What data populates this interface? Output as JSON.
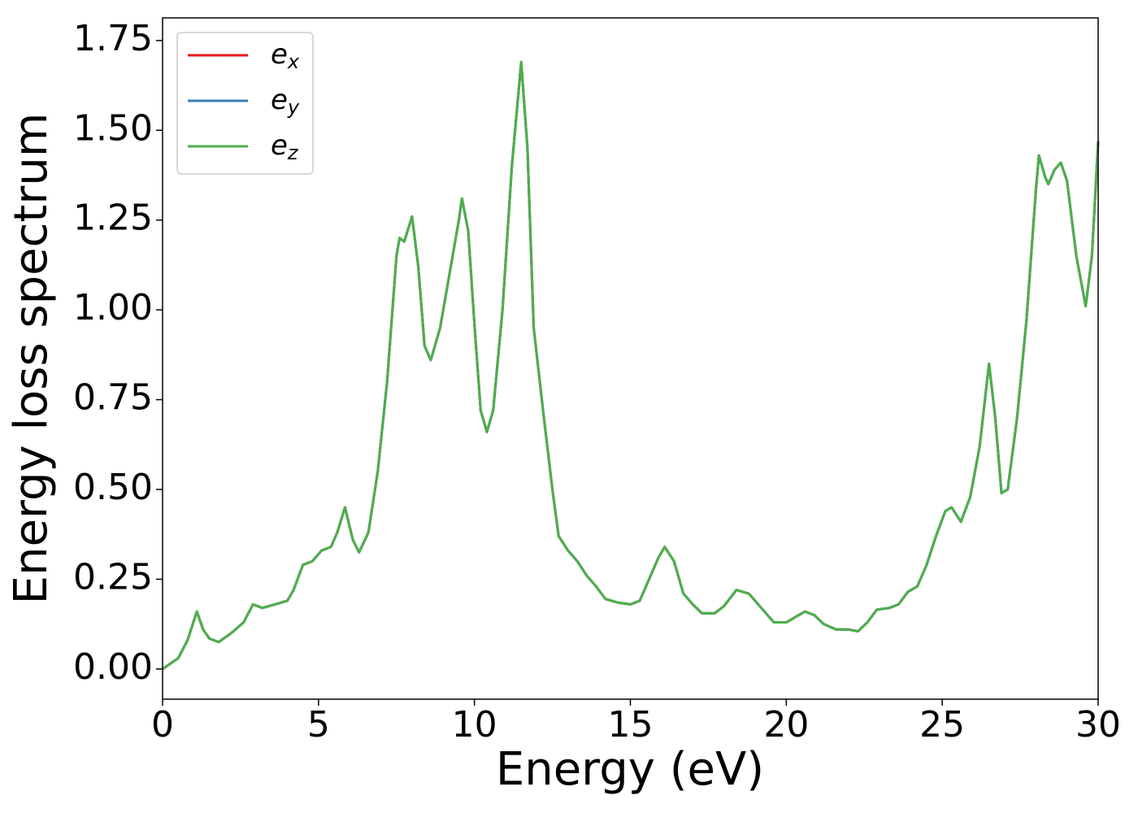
{
  "chart_data": {
    "type": "line",
    "xlabel": "Energy (eV)",
    "ylabel": "Energy loss spectrum",
    "x": [
      0,
      0.5,
      0.8,
      1.1,
      1.3,
      1.5,
      1.8,
      2.2,
      2.6,
      2.9,
      3.2,
      3.6,
      4.0,
      4.2,
      4.5,
      4.8,
      5.1,
      5.4,
      5.6,
      5.85,
      6.1,
      6.3,
      6.6,
      6.9,
      7.2,
      7.5,
      7.6,
      7.75,
      8.0,
      8.2,
      8.4,
      8.6,
      8.9,
      9.2,
      9.5,
      9.6,
      9.8,
      10.0,
      10.2,
      10.4,
      10.6,
      10.9,
      11.2,
      11.5,
      11.7,
      11.9,
      12.2,
      12.5,
      12.7,
      13.0,
      13.3,
      13.6,
      13.9,
      14.2,
      14.6,
      15.0,
      15.3,
      15.6,
      15.9,
      16.1,
      16.4,
      16.7,
      17.0,
      17.3,
      17.7,
      18.0,
      18.4,
      18.8,
      19.2,
      19.6,
      20.0,
      20.3,
      20.6,
      20.9,
      21.2,
      21.6,
      22.0,
      22.3,
      22.6,
      22.9,
      23.3,
      23.6,
      23.9,
      24.2,
      24.5,
      24.8,
      25.1,
      25.3,
      25.6,
      25.9,
      26.2,
      26.5,
      26.7,
      26.9,
      27.1,
      27.4,
      27.7,
      28.0,
      28.1,
      28.3,
      28.4,
      28.6,
      28.8,
      29.0,
      29.3,
      29.6,
      29.8,
      30.0
    ],
    "series": [
      {
        "name": "ex",
        "color": "#e41a1c",
        "values": [
          0,
          0.03,
          0.08,
          0.16,
          0.11,
          0.085,
          0.075,
          0.1,
          0.13,
          0.18,
          0.17,
          0.18,
          0.19,
          0.22,
          0.29,
          0.3,
          0.33,
          0.34,
          0.38,
          0.45,
          0.36,
          0.325,
          0.38,
          0.55,
          0.8,
          1.15,
          1.2,
          1.19,
          1.26,
          1.12,
          0.9,
          0.86,
          0.95,
          1.1,
          1.25,
          1.31,
          1.22,
          0.96,
          0.72,
          0.66,
          0.72,
          1.0,
          1.4,
          1.69,
          1.45,
          0.95,
          0.72,
          0.5,
          0.37,
          0.33,
          0.3,
          0.26,
          0.23,
          0.195,
          0.185,
          0.18,
          0.19,
          0.25,
          0.31,
          0.34,
          0.3,
          0.21,
          0.18,
          0.155,
          0.155,
          0.175,
          0.22,
          0.21,
          0.17,
          0.13,
          0.13,
          0.145,
          0.16,
          0.15,
          0.125,
          0.11,
          0.11,
          0.105,
          0.13,
          0.165,
          0.17,
          0.18,
          0.215,
          0.23,
          0.29,
          0.37,
          0.44,
          0.45,
          0.41,
          0.48,
          0.62,
          0.85,
          0.7,
          0.49,
          0.5,
          0.7,
          0.97,
          1.33,
          1.43,
          1.37,
          1.35,
          1.39,
          1.41,
          1.36,
          1.15,
          1.01,
          1.15,
          1.47
        ]
      },
      {
        "name": "ey",
        "color": "#377eb8",
        "values": [
          0,
          0.03,
          0.08,
          0.16,
          0.11,
          0.085,
          0.075,
          0.1,
          0.13,
          0.18,
          0.17,
          0.18,
          0.19,
          0.22,
          0.29,
          0.3,
          0.33,
          0.34,
          0.38,
          0.45,
          0.36,
          0.325,
          0.38,
          0.55,
          0.8,
          1.15,
          1.2,
          1.19,
          1.26,
          1.12,
          0.9,
          0.86,
          0.95,
          1.1,
          1.25,
          1.31,
          1.22,
          0.96,
          0.72,
          0.66,
          0.72,
          1.0,
          1.4,
          1.69,
          1.45,
          0.95,
          0.72,
          0.5,
          0.37,
          0.33,
          0.3,
          0.26,
          0.23,
          0.195,
          0.185,
          0.18,
          0.19,
          0.25,
          0.31,
          0.34,
          0.3,
          0.21,
          0.18,
          0.155,
          0.155,
          0.175,
          0.22,
          0.21,
          0.17,
          0.13,
          0.13,
          0.145,
          0.16,
          0.15,
          0.125,
          0.11,
          0.11,
          0.105,
          0.13,
          0.165,
          0.17,
          0.18,
          0.215,
          0.23,
          0.29,
          0.37,
          0.44,
          0.45,
          0.41,
          0.48,
          0.62,
          0.85,
          0.7,
          0.49,
          0.5,
          0.7,
          0.97,
          1.33,
          1.43,
          1.37,
          1.35,
          1.39,
          1.41,
          1.36,
          1.15,
          1.01,
          1.15,
          1.47
        ]
      },
      {
        "name": "ez",
        "color": "#4daf4a",
        "values": [
          0,
          0.03,
          0.08,
          0.16,
          0.11,
          0.085,
          0.075,
          0.1,
          0.13,
          0.18,
          0.17,
          0.18,
          0.19,
          0.22,
          0.29,
          0.3,
          0.33,
          0.34,
          0.38,
          0.45,
          0.36,
          0.325,
          0.38,
          0.55,
          0.8,
          1.15,
          1.2,
          1.19,
          1.26,
          1.12,
          0.9,
          0.86,
          0.95,
          1.1,
          1.25,
          1.31,
          1.22,
          0.96,
          0.72,
          0.66,
          0.72,
          1.0,
          1.4,
          1.69,
          1.45,
          0.95,
          0.72,
          0.5,
          0.37,
          0.33,
          0.3,
          0.26,
          0.23,
          0.195,
          0.185,
          0.18,
          0.19,
          0.25,
          0.31,
          0.34,
          0.3,
          0.21,
          0.18,
          0.155,
          0.155,
          0.175,
          0.22,
          0.21,
          0.17,
          0.13,
          0.13,
          0.145,
          0.16,
          0.15,
          0.125,
          0.11,
          0.11,
          0.105,
          0.13,
          0.165,
          0.17,
          0.18,
          0.215,
          0.23,
          0.29,
          0.37,
          0.44,
          0.45,
          0.41,
          0.48,
          0.62,
          0.85,
          0.7,
          0.49,
          0.5,
          0.7,
          0.97,
          1.33,
          1.43,
          1.37,
          1.35,
          1.39,
          1.41,
          1.36,
          1.15,
          1.01,
          1.15,
          1.47
        ]
      }
    ],
    "xlim": [
      0,
      30
    ],
    "xticks": [
      0,
      5,
      10,
      15,
      20,
      25,
      30
    ],
    "ylim": [
      -0.084,
      1.813
    ],
    "yticks": [
      {
        "value": 0,
        "label": "0.00"
      },
      {
        "value": 0.25,
        "label": "0.25"
      },
      {
        "value": 0.5,
        "label": "0.50"
      },
      {
        "value": 0.75,
        "label": "0.75"
      },
      {
        "value": 1.0,
        "label": "1.00"
      },
      {
        "value": 1.25,
        "label": "1.25"
      },
      {
        "value": 1.5,
        "label": "1.50"
      },
      {
        "value": 1.75,
        "label": "1.75"
      }
    ],
    "legend": "upper left"
  }
}
